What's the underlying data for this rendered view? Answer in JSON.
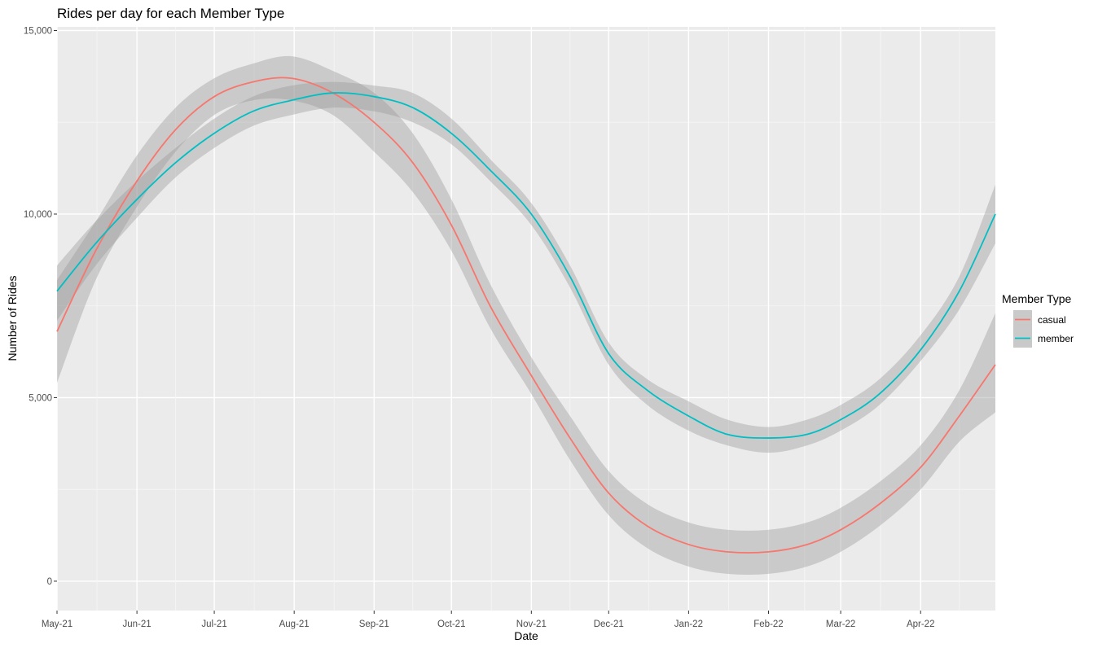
{
  "chart_data": {
    "type": "line",
    "title": "Rides per day for each Member Type",
    "xlabel": "Date",
    "ylabel": "Number of Rides",
    "x_ticks": [
      "May-21",
      "Jun-21",
      "Jul-21",
      "Aug-21",
      "Sep-21",
      "Oct-21",
      "Nov-21",
      "Dec-21",
      "Jan-22",
      "Feb-22",
      "Mar-22",
      "Apr-22"
    ],
    "xlim": [
      "2021-05-01",
      "2022-04-30"
    ],
    "ylim": [
      -800,
      15100
    ],
    "y_ticks": [
      0,
      5000,
      10000,
      15000
    ],
    "y_tick_labels": [
      "0",
      "5,000",
      "10,000",
      "15,000"
    ],
    "grid": true,
    "smoothed_with_confidence_band": true,
    "legend": {
      "title": "Member Type",
      "position": "right",
      "entries": [
        "casual",
        "member"
      ]
    },
    "x": [
      "2021-05-01",
      "2021-05-16",
      "2021-06-01",
      "2021-06-16",
      "2021-07-01",
      "2021-07-16",
      "2021-07-31",
      "2021-08-16",
      "2021-09-01",
      "2021-09-16",
      "2021-10-01",
      "2021-10-16",
      "2021-11-01",
      "2021-11-16",
      "2021-12-01",
      "2021-12-16",
      "2022-01-01",
      "2022-01-16",
      "2022-02-01",
      "2022-02-16",
      "2022-03-01",
      "2022-03-16",
      "2022-04-01",
      "2022-04-16",
      "2022-04-30"
    ],
    "series": [
      {
        "name": "casual",
        "color": "#F8766D",
        "values": [
          6800,
          9000,
          10900,
          12300,
          13200,
          13600,
          13700,
          13300,
          12500,
          11400,
          9700,
          7500,
          5600,
          3900,
          2400,
          1500,
          1000,
          800,
          800,
          1000,
          1400,
          2100,
          3100,
          4500,
          5900
        ],
        "lower": [
          5400,
          8200,
          10200,
          11700,
          12700,
          13100,
          13100,
          12700,
          11700,
          10600,
          9000,
          6900,
          5100,
          3300,
          1800,
          900,
          400,
          200,
          200,
          400,
          800,
          1500,
          2500,
          3800,
          4600
        ],
        "upper": [
          8200,
          9800,
          11600,
          12900,
          13700,
          14100,
          14300,
          13900,
          13300,
          12200,
          10400,
          8100,
          6100,
          4500,
          3000,
          2100,
          1600,
          1400,
          1400,
          1600,
          2000,
          2700,
          3700,
          5200,
          7300
        ]
      },
      {
        "name": "member",
        "color": "#00BFC4",
        "values": [
          7900,
          9200,
          10400,
          11400,
          12200,
          12800,
          13100,
          13300,
          13200,
          12900,
          12200,
          11200,
          10000,
          8300,
          6200,
          5200,
          4500,
          4000,
          3900,
          4000,
          4400,
          5100,
          6300,
          7900,
          10000
        ],
        "lower": [
          7100,
          8600,
          9900,
          11000,
          11800,
          12400,
          12700,
          12900,
          12800,
          12500,
          11900,
          10900,
          9700,
          8000,
          5900,
          4800,
          4100,
          3700,
          3500,
          3700,
          4100,
          4800,
          6000,
          7400,
          9200
        ],
        "upper": [
          8600,
          9800,
          10900,
          11800,
          12600,
          13200,
          13500,
          13600,
          13500,
          13300,
          12600,
          11500,
          10300,
          8600,
          6500,
          5500,
          4900,
          4400,
          4200,
          4400,
          4800,
          5500,
          6700,
          8300,
          10800
        ]
      }
    ]
  }
}
